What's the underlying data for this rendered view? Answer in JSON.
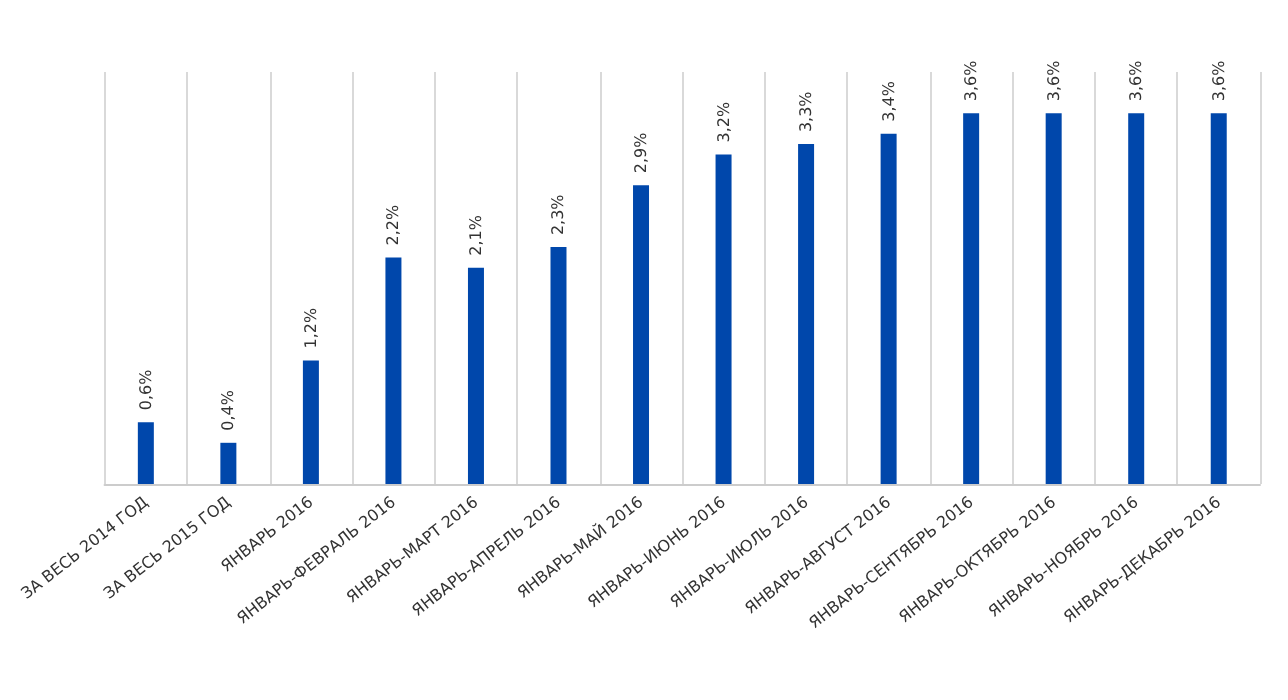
{
  "chart_data": {
    "type": "bar",
    "categories": [
      "ЗА ВЕСЬ 2014 ГОД",
      "ЗА ВЕСЬ 2015 ГОД",
      "ЯНВАРЬ 2016",
      "ЯНВАРЬ-ФЕВРАЛЬ 2016",
      "ЯНВАРЬ-МАРТ 2016",
      "ЯНВАРЬ-АПРЕЛЬ 2016",
      "ЯНВАРЬ-МАЙ 2016",
      "ЯНВАРЬ-ИЮНЬ 2016",
      "ЯНВАРЬ-ИЮЛЬ 2016",
      "ЯНВАРЬ-АВГУСТ 2016",
      "ЯНВАРЬ-СЕНТЯБРЬ 2016",
      "ЯНВАРЬ-ОКТЯБРЬ 2016",
      "ЯНВАРЬ-НОЯБРЬ 2016",
      "ЯНВАРЬ-ДЕКАБРЬ 2016"
    ],
    "values": [
      0.6,
      0.4,
      1.2,
      2.2,
      2.1,
      2.3,
      2.9,
      3.2,
      3.3,
      3.4,
      3.6,
      3.6,
      3.6,
      3.6
    ],
    "value_labels": [
      "0,6%",
      "0,4%",
      "1,2%",
      "2,2%",
      "2,1%",
      "2,3%",
      "2,9%",
      "3,2%",
      "3,3%",
      "3,4%",
      "3,6%",
      "3,6%",
      "3,6%",
      "3,6%"
    ],
    "color": "#0047ab",
    "grid": "x",
    "tick_labels": "x"
  }
}
